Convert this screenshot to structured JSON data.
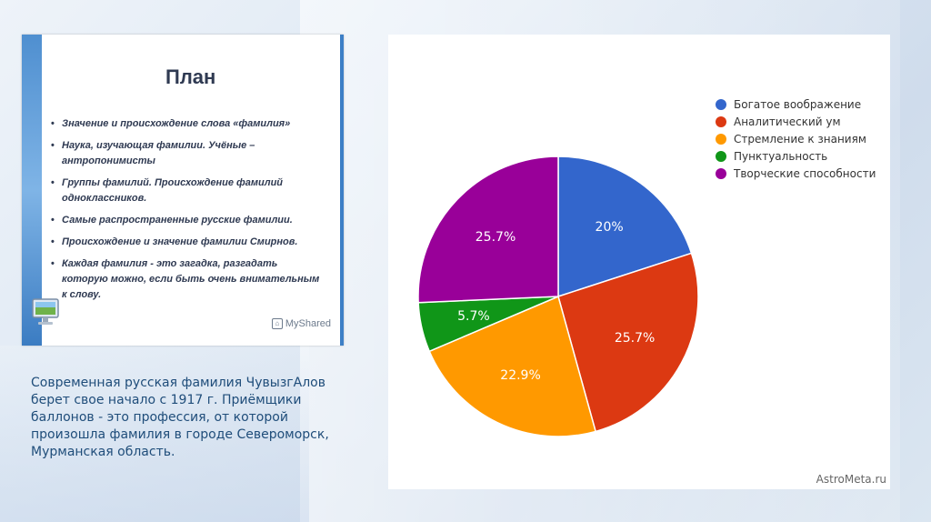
{
  "plan_slide": {
    "title": "План",
    "items": [
      "Значение и происхождение слова «фамилия»",
      "Наука, изучающая фамилии. Учёные – антропонимисты",
      "Группы фамилий. Происхождение фамилий одноклассников.",
      "Самые распространенные русские фамилии.",
      "Происхождение и значение  фамилии Смирнов.",
      "Каждая фамилия - это загадка, разгадать которую можно, если быть очень внимательным к слову."
    ],
    "watermark": "MyShared",
    "icon": "monitor-icon"
  },
  "caption": "Современная русская фамилия ЧувызгАлов берет свое начало с 1917 г. Приёмщики баллонов - это профессия, от которой произошла фамилия в городе Североморск, Мурманская область.",
  "chart_data": {
    "type": "pie",
    "categories": [
      "Богатое воображение",
      "Аналитический ум",
      "Стремление к знаниям",
      "Пунктуальность",
      "Творческие способности"
    ],
    "values": [
      20,
      25.7,
      22.9,
      5.7,
      25.7
    ],
    "labels": [
      "20%",
      "25.7%",
      "22.9%",
      "5.7%",
      "25.7%"
    ],
    "colors": [
      "#3366cc",
      "#dc3912",
      "#ff9900",
      "#109618",
      "#990099"
    ],
    "legend_position": "right",
    "start": "12 o'clock, clockwise"
  },
  "chart_watermark": "AstroMeta.ru"
}
